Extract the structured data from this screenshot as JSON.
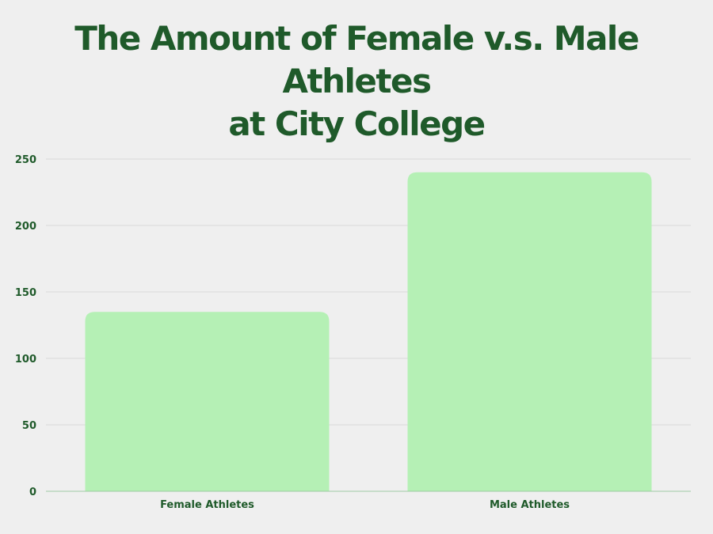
{
  "chart_data": {
    "type": "bar",
    "title_lines": [
      "The Amount of Female v.s. Male Athletes",
      "at City College"
    ],
    "categories": [
      "Female Athletes",
      "Male Athletes"
    ],
    "values": [
      135,
      240
    ],
    "ylim": [
      0,
      250
    ],
    "yticks": [
      "0",
      "50",
      "100",
      "150",
      "200",
      "250"
    ],
    "grid": true,
    "xlabel": "",
    "ylabel": "",
    "bar_color": "#b5f0b5",
    "text_color": "#1f5a2a",
    "grid_color": "#d9d9d9"
  }
}
